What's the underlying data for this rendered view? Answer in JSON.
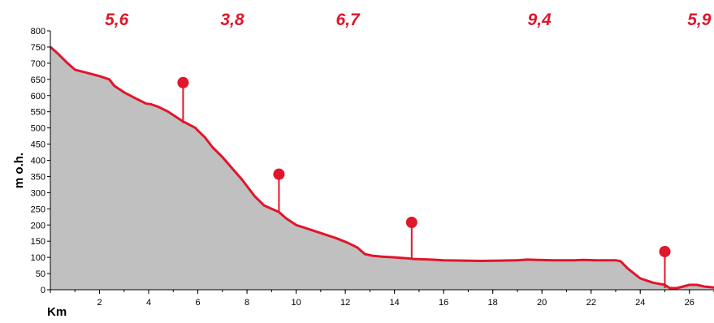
{
  "chart_data": {
    "type": "area",
    "xlabel": "Km",
    "ylabel": "m o.h.",
    "xlim": [
      0,
      27
    ],
    "ylim": [
      0,
      800
    ],
    "x_ticks": [
      2,
      4,
      6,
      8,
      10,
      12,
      14,
      16,
      18,
      20,
      22,
      24,
      26
    ],
    "y_ticks": [
      0,
      50,
      100,
      150,
      200,
      250,
      300,
      350,
      400,
      450,
      500,
      550,
      600,
      650,
      700,
      750,
      800
    ],
    "grid": false,
    "colors": {
      "line": "#e0162b",
      "fill": "#c0c0c0",
      "segment_label": "#e0162b"
    },
    "series": [
      {
        "x": [
          0,
          0.3,
          0.7,
          1.0,
          1.5,
          2.0,
          2.4,
          2.6,
          3.0,
          3.5,
          3.9,
          4.1,
          4.4,
          4.8,
          5.0,
          5.2,
          5.4,
          5.6,
          5.9,
          6.0,
          6.3,
          6.6,
          7.0,
          7.4,
          7.8,
          8.0,
          8.3,
          8.7,
          9.0,
          9.3,
          9.6,
          10.0,
          10.4,
          11.0,
          11.6,
          12.1,
          12.5,
          12.8,
          13.1,
          13.5,
          14.0,
          14.5,
          14.8,
          15.5,
          16.0,
          16.8,
          17.5,
          18.3,
          19.0,
          19.4,
          19.8,
          20.5,
          21.3,
          21.7,
          22.2,
          23.0,
          23.2,
          23.5,
          24.0,
          24.5,
          25.0,
          25.2,
          25.5,
          26.0,
          26.3,
          26.6,
          27.0
        ],
        "y": [
          750,
          730,
          700,
          680,
          670,
          660,
          650,
          630,
          610,
          590,
          575,
          573,
          565,
          550,
          540,
          530,
          520,
          512,
          500,
          492,
          470,
          440,
          410,
          375,
          340,
          320,
          290,
          260,
          250,
          240,
          220,
          200,
          190,
          175,
          160,
          145,
          130,
          110,
          105,
          102,
          100,
          97,
          95,
          93,
          91,
          90,
          89,
          90,
          91,
          93,
          92,
          91,
          91,
          92,
          91,
          91,
          88,
          65,
          35,
          22,
          15,
          5,
          5,
          15,
          15,
          10,
          7
        ]
      }
    ],
    "markers": [
      {
        "km": 5.4,
        "elevation": 515,
        "top": 640
      },
      {
        "km": 9.3,
        "elevation": 240,
        "top": 357
      },
      {
        "km": 14.7,
        "elevation": 96,
        "top": 208
      },
      {
        "km": 25.0,
        "elevation": 5,
        "top": 118
      }
    ],
    "segment_labels": [
      {
        "text": "5,6",
        "x_km": 2.7
      },
      {
        "text": "3,8",
        "x_km": 7.4
      },
      {
        "text": "6,7",
        "x_km": 12.1
      },
      {
        "text": "9,4",
        "x_km": 19.9
      },
      {
        "text": "5,9",
        "x_km": 26.4
      }
    ]
  }
}
